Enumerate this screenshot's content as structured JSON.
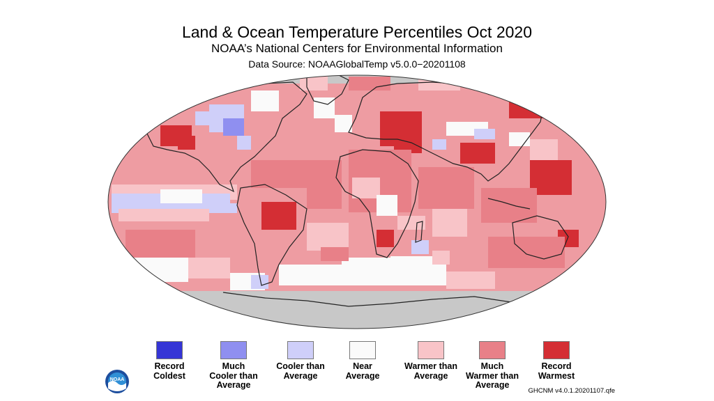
{
  "header": {
    "title": "Land & Ocean Temperature Percentiles Oct 2020",
    "subtitle": "NOAA’s National Centers for Environmental Information",
    "source": "Data Source: NOAAGlobalTemp v5.0.0−20201108"
  },
  "legend": [
    {
      "label": "Record\nColdest",
      "color": "#3535d6"
    },
    {
      "label": "Much\nCooler than\nAverage",
      "color": "#8f8ff0"
    },
    {
      "label": "Cooler than\nAverage",
      "color": "#cfcff9"
    },
    {
      "label": "Near\nAverage",
      "color": "#fafafa"
    },
    {
      "label": "Warmer than\nAverage",
      "color": "#f8c4c8"
    },
    {
      "label": "Much\nWarmer than\nAverage",
      "color": "#e88088"
    },
    {
      "label": "Record\nWarmest",
      "color": "#d42e34"
    }
  ],
  "version": "GHCNM v4.0.1.20201107.qfe",
  "logo": {
    "text": "NOAA",
    "icon": "noaa-logo"
  },
  "map": {
    "no_data_color": "#c8c8c8",
    "outline_color": "#222222"
  }
}
